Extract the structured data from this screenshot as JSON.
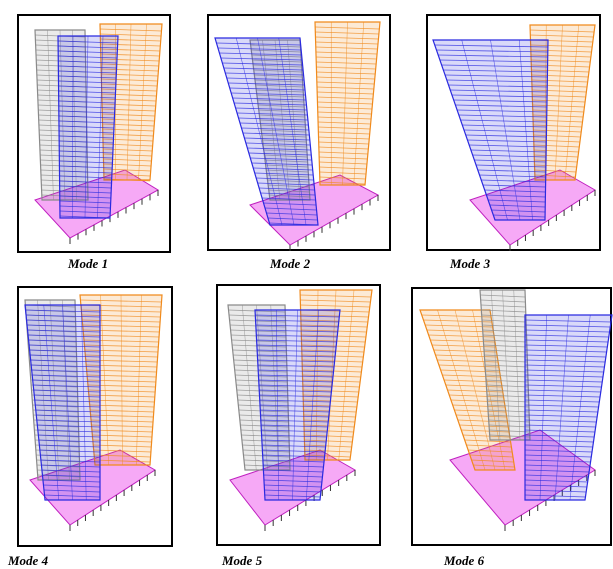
{
  "panels": [
    {
      "label": "Mode 1"
    },
    {
      "label": "Mode 2"
    },
    {
      "label": "Mode 3"
    },
    {
      "label": "Mode 4"
    },
    {
      "label": "Mode 5"
    },
    {
      "label": "Mode 6"
    }
  ]
}
